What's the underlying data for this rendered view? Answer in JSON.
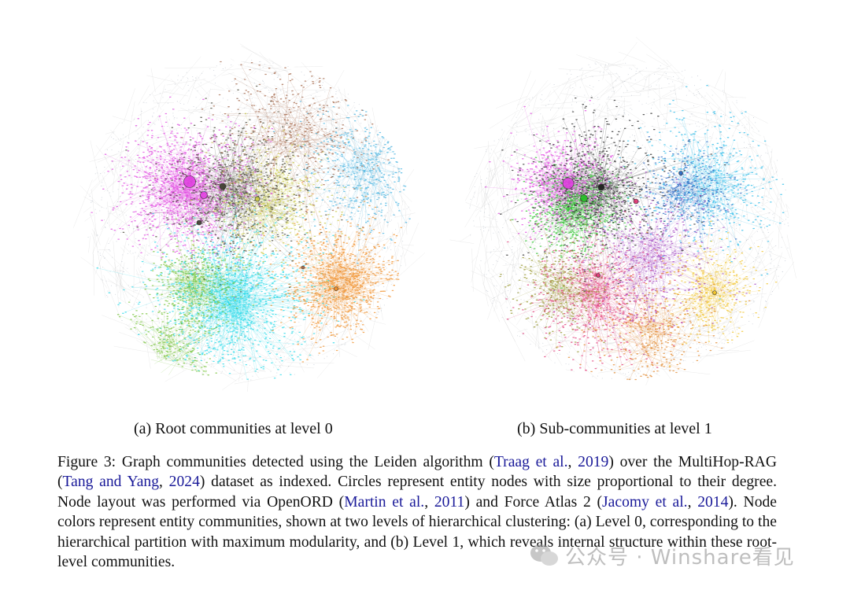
{
  "figure": {
    "panel_a": {
      "caption": "(a) Root communities at level 0"
    },
    "panel_b": {
      "caption": "(b) Sub-communities at level 1"
    },
    "caption": {
      "s1": "Figure 3: Graph communities detected using the Leiden algorithm (",
      "c1": "Traag et al.",
      "s2": ", ",
      "c2": "2019",
      "s3": ") over the MultiHop-RAG (",
      "c3": "Tang and Yang",
      "s4": ", ",
      "c4": "2024",
      "s5": ") dataset as indexed. Circles represent entity nodes with size proportional to their degree. Node layout was performed via OpenORD (",
      "c5": "Martin et al.",
      "s6": ", ",
      "c6": "2011",
      "s7": ") and Force Atlas 2 (",
      "c7": "Jacomy et al.",
      "s8": ", ",
      "c8": "2014",
      "s9": "). Node colors represent entity communities, shown at two levels of hierarchical clustering: (a) Level 0, corresponding to the hierarchical partition with maximum modularity, and (b) Level 1, which reveals internal structure within these root-level communities."
    }
  },
  "watermark": {
    "text": "公众号 · Winshare看见"
  },
  "colors": {
    "citation": "#1a1a99",
    "level0_communities": [
      "#e040e0",
      "#20d8e8",
      "#f08a20",
      "#70c030",
      "#3a3a2a",
      "#c8c840",
      "#40b0e0",
      "#a06040"
    ],
    "level1_communities": [
      "#e040e0",
      "#20c020",
      "#1a1a1a",
      "#20b8e8",
      "#e03070",
      "#f0c020",
      "#2060c0",
      "#909020",
      "#e08020",
      "#a040c0"
    ]
  }
}
